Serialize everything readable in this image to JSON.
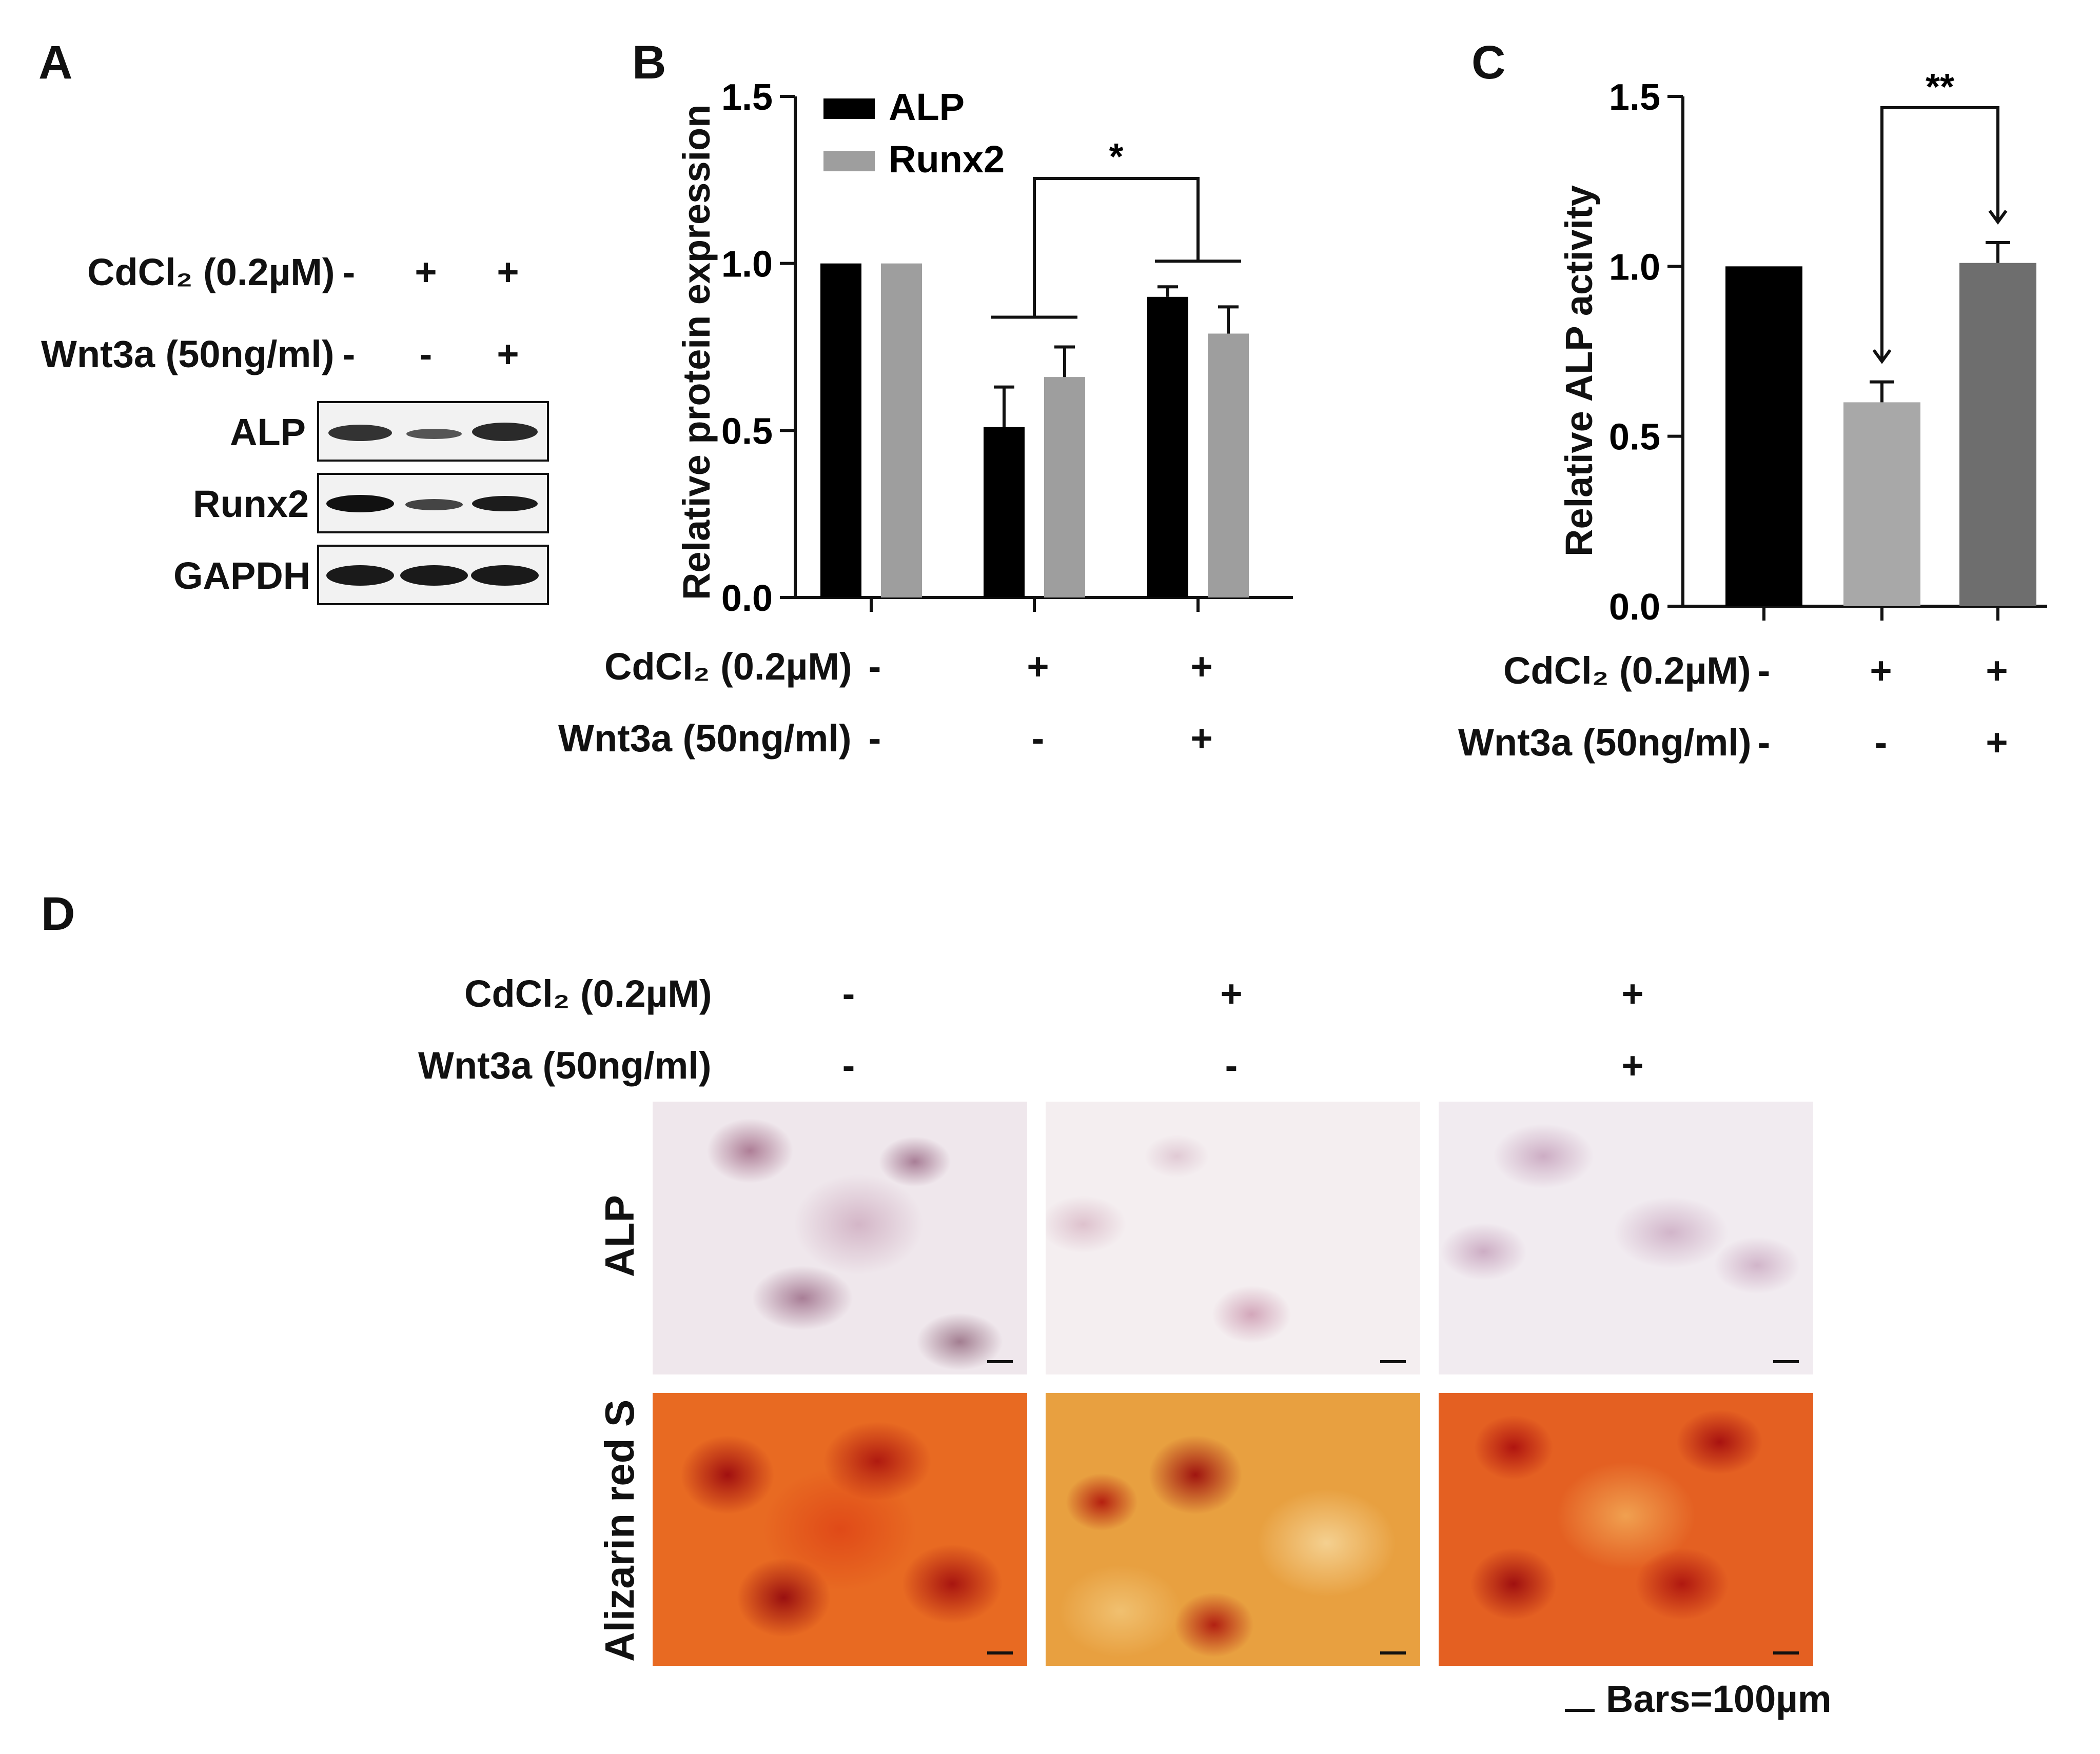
{
  "panels": {
    "A": {
      "letter": "A",
      "rows": [
        {
          "label": "CdCl₂ (0.2µM)",
          "signs": [
            "-",
            "+",
            "+"
          ]
        },
        {
          "label": "Wnt3a (50ng/ml)",
          "signs": [
            "-",
            "-",
            "+"
          ]
        }
      ],
      "blots": [
        "ALP",
        "Runx2",
        "GAPDH"
      ]
    },
    "B": {
      "letter": "B",
      "rows": [
        {
          "label": "CdCl₂ (0.2µM)",
          "signs": [
            "-",
            "+",
            "+"
          ]
        },
        {
          "label": "Wnt3a (50ng/ml)",
          "signs": [
            "-",
            "-",
            "+"
          ]
        }
      ]
    },
    "C": {
      "letter": "C",
      "rows": [
        {
          "label": "CdCl₂ (0.2µM)",
          "signs": [
            "-",
            "+",
            "+"
          ]
        },
        {
          "label": "Wnt3a (50ng/ml)",
          "signs": [
            "-",
            "-",
            "+"
          ]
        }
      ]
    },
    "D": {
      "letter": "D",
      "rows": [
        {
          "label": "CdCl₂ (0.2µM)",
          "signs": [
            "-",
            "+",
            "+"
          ]
        },
        {
          "label": "Wnt3a (50ng/ml)",
          "signs": [
            "-",
            "-",
            "+"
          ]
        }
      ],
      "row_labels": [
        "ALP",
        "Alizarin red S"
      ],
      "scale_label": "Bars=100µm"
    }
  },
  "chart_data": [
    {
      "panel": "B",
      "type": "bar",
      "ylabel": "Relative protein expression",
      "ylim": [
        0,
        1.5
      ],
      "yticks": [
        "0.0",
        "0.5",
        "1.0",
        "1.5"
      ],
      "groups": 3,
      "series": [
        {
          "name": "ALP",
          "values": [
            1.0,
            0.51,
            0.9
          ],
          "errors": [
            0,
            0.12,
            0.03
          ],
          "color": "#000000"
        },
        {
          "name": "Runx2",
          "values": [
            1.0,
            0.66,
            0.79
          ],
          "errors": [
            0,
            0.09,
            0.08
          ],
          "color": "#9e9e9e"
        }
      ],
      "significance": "*",
      "legend": "top-left"
    },
    {
      "panel": "C",
      "type": "bar",
      "ylabel": "Relative ALP activity",
      "ylim": [
        0,
        1.5
      ],
      "yticks": [
        "0.0",
        "0.5",
        "1.0",
        "1.5"
      ],
      "values": [
        1.0,
        0.6,
        1.01
      ],
      "errors": [
        0,
        0.06,
        0.06
      ],
      "colors": [
        "#000000",
        "#a8a8a8",
        "#6e6e6e"
      ],
      "significance": "**"
    }
  ]
}
